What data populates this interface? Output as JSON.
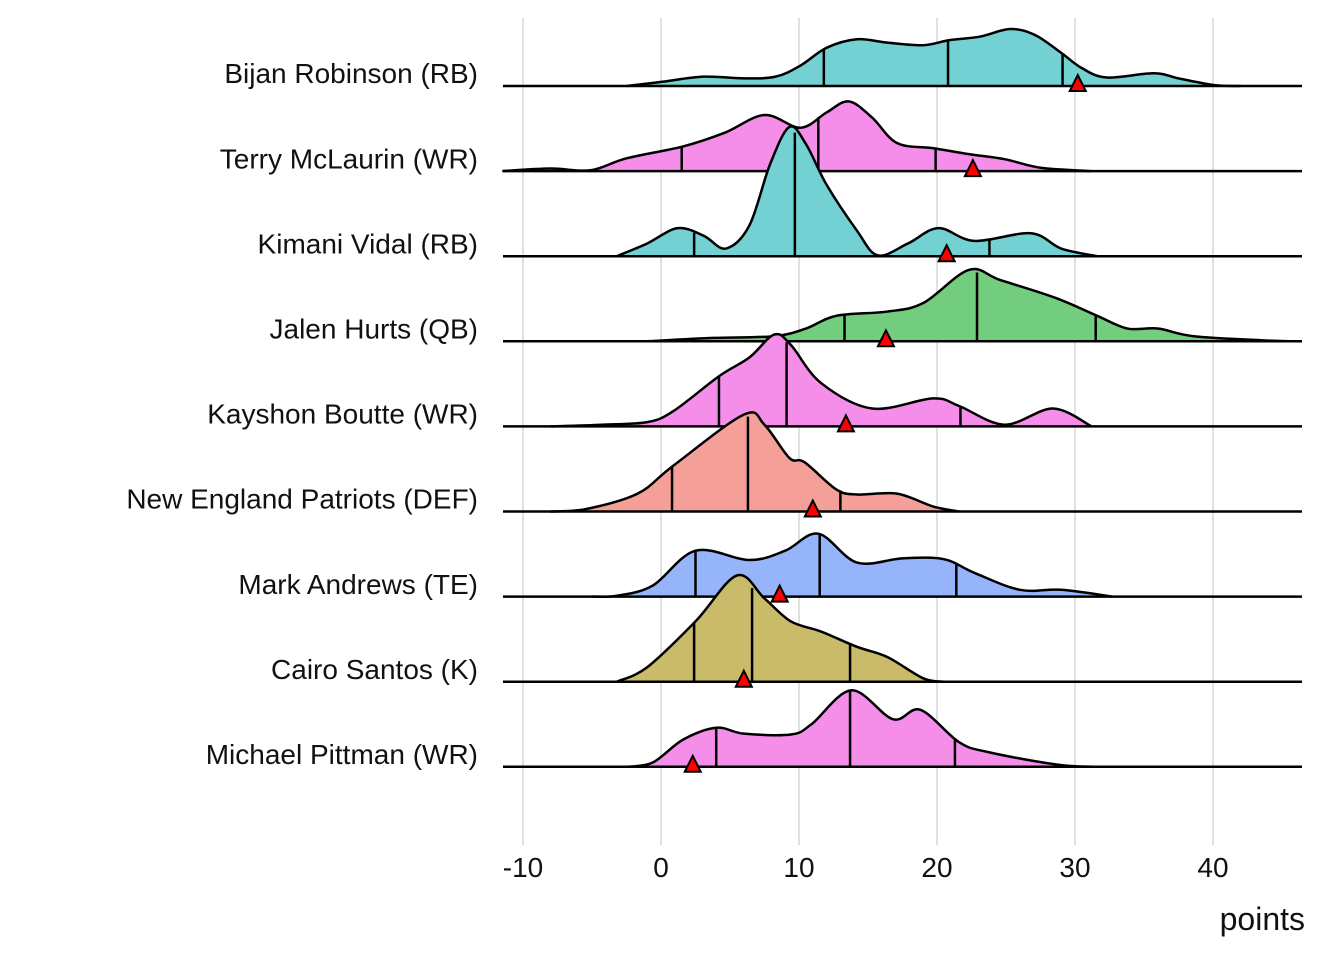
{
  "chart_data": {
    "type": "ridgeline",
    "title": "",
    "xlabel": "points",
    "ylabel": "",
    "xlim": [
      -11.5,
      46.3
    ],
    "xticks": [
      -10,
      0,
      10,
      20,
      30,
      40
    ],
    "grid": true,
    "density_units": "relative height, 1 = row spacing",
    "marker": "red triangle = actual points",
    "quantile_lines": "vertical lines at 25th/50th/75th percentile",
    "series": [
      {
        "name": "Bijan Robinson (RB)",
        "color": "#73d1d3",
        "quantiles": [
          11.8,
          20.8,
          29.1
        ],
        "marker": 30.2,
        "density": [
          [
            -2.5,
            0
          ],
          [
            0.1,
            0.05
          ],
          [
            3.1,
            0.11
          ],
          [
            6,
            0.09
          ],
          [
            8.3,
            0.11
          ],
          [
            10.1,
            0.24
          ],
          [
            12,
            0.45
          ],
          [
            14.2,
            0.55
          ],
          [
            16.4,
            0.51
          ],
          [
            19,
            0.48
          ],
          [
            20.9,
            0.54
          ],
          [
            23.1,
            0.58
          ],
          [
            25.3,
            0.67
          ],
          [
            27.1,
            0.6
          ],
          [
            29,
            0.39
          ],
          [
            30.5,
            0.21
          ],
          [
            32.3,
            0.1
          ],
          [
            35.7,
            0.15
          ],
          [
            37.5,
            0.09
          ],
          [
            40.1,
            0.01
          ],
          [
            42,
            0
          ]
        ]
      },
      {
        "name": "Terry McLaurin (WR)",
        "color": "#f48ee8",
        "quantiles": [
          1.5,
          11.4,
          19.9
        ],
        "marker": 22.6,
        "density": [
          [
            -11.5,
            0
          ],
          [
            -8,
            0.03
          ],
          [
            -5.1,
            0.01
          ],
          [
            -2.5,
            0.15
          ],
          [
            1.6,
            0.29
          ],
          [
            4.6,
            0.45
          ],
          [
            7.5,
            0.66
          ],
          [
            10.1,
            0.51
          ],
          [
            12,
            0.69
          ],
          [
            13.6,
            0.82
          ],
          [
            15.3,
            0.63
          ],
          [
            17.1,
            0.33
          ],
          [
            19.7,
            0.27
          ],
          [
            22.3,
            0.2
          ],
          [
            24.9,
            0.14
          ],
          [
            27.5,
            0.04
          ],
          [
            31.2,
            0
          ]
        ]
      },
      {
        "name": "Kimani Vidal (RB)",
        "color": "#73d1d3",
        "quantiles": [
          2.4,
          9.7,
          23.8
        ],
        "marker": 20.7,
        "density": [
          [
            -3.2,
            0
          ],
          [
            -1,
            0.15
          ],
          [
            1.2,
            0.33
          ],
          [
            3.1,
            0.24
          ],
          [
            4.7,
            0.09
          ],
          [
            6.4,
            0.36
          ],
          [
            7.9,
            1.08
          ],
          [
            9.3,
            1.52
          ],
          [
            10.5,
            1.32
          ],
          [
            12,
            0.84
          ],
          [
            14.2,
            0.3
          ],
          [
            15.7,
            0.01
          ],
          [
            17.9,
            0.15
          ],
          [
            20.1,
            0.33
          ],
          [
            22.7,
            0.18
          ],
          [
            26.8,
            0.27
          ],
          [
            29,
            0.09
          ],
          [
            31.6,
            0
          ]
        ]
      },
      {
        "name": "Jalen Hurts (QB)",
        "color": "#73cd7e",
        "quantiles": [
          13.3,
          22.9,
          31.5
        ],
        "marker": 16.3,
        "density": [
          [
            -1,
            0
          ],
          [
            0.1,
            0.01
          ],
          [
            3.8,
            0.04
          ],
          [
            8.2,
            0.06
          ],
          [
            10.5,
            0.15
          ],
          [
            12.7,
            0.3
          ],
          [
            16.4,
            0.35
          ],
          [
            19,
            0.45
          ],
          [
            22.3,
            0.84
          ],
          [
            24.6,
            0.72
          ],
          [
            28.6,
            0.51
          ],
          [
            31.6,
            0.3
          ],
          [
            33.8,
            0.15
          ],
          [
            36,
            0.15
          ],
          [
            38.6,
            0.06
          ],
          [
            43.8,
            0.01
          ],
          [
            46,
            0
          ]
        ]
      },
      {
        "name": "Kayshon Boutte (WR)",
        "color": "#f48ee8",
        "quantiles": [
          4.2,
          9.1,
          21.7
        ],
        "marker": 13.4,
        "density": [
          [
            -8,
            0
          ],
          [
            -4.3,
            0.02
          ],
          [
            -1,
            0.05
          ],
          [
            0.9,
            0.18
          ],
          [
            4.2,
            0.59
          ],
          [
            6.4,
            0.81
          ],
          [
            8.2,
            1.08
          ],
          [
            9.4,
            0.96
          ],
          [
            11.6,
            0.51
          ],
          [
            15.3,
            0.21
          ],
          [
            19.7,
            0.33
          ],
          [
            21.6,
            0.24
          ],
          [
            24.9,
            0.02
          ],
          [
            28.4,
            0.21
          ],
          [
            31.2,
            0
          ]
        ]
      },
      {
        "name": "New England Patriots (DEF)",
        "color": "#f4a099",
        "quantiles": [
          0.8,
          6.3,
          13.0
        ],
        "marker": 11.0,
        "density": [
          [
            -8,
            0
          ],
          [
            -5.4,
            0.03
          ],
          [
            -1.7,
            0.21
          ],
          [
            0.9,
            0.54
          ],
          [
            6,
            1.14
          ],
          [
            7.5,
            1.02
          ],
          [
            9.3,
            0.63
          ],
          [
            10.4,
            0.58
          ],
          [
            12.7,
            0.26
          ],
          [
            14.2,
            0.2
          ],
          [
            17.1,
            0.21
          ],
          [
            19.7,
            0.06
          ],
          [
            21.6,
            0
          ]
        ]
      },
      {
        "name": "Mark Andrews (TE)",
        "color": "#96b4fa",
        "quantiles": [
          2.5,
          11.5,
          21.4
        ],
        "marker": 8.6,
        "density": [
          [
            -5,
            0
          ],
          [
            -3.2,
            0.01
          ],
          [
            -0.6,
            0.13
          ],
          [
            2.5,
            0.54
          ],
          [
            6.4,
            0.43
          ],
          [
            9,
            0.54
          ],
          [
            11.4,
            0.74
          ],
          [
            14.2,
            0.4
          ],
          [
            17.5,
            0.45
          ],
          [
            20.5,
            0.44
          ],
          [
            22.7,
            0.28
          ],
          [
            26,
            0.08
          ],
          [
            29,
            0.08
          ],
          [
            32.7,
            0
          ]
        ]
      },
      {
        "name": "Cairo Santos (K)",
        "color": "#c9bb6a",
        "quantiles": [
          2.4,
          6.6,
          13.7
        ],
        "marker": 6.0,
        "density": [
          [
            -3.2,
            0
          ],
          [
            -1,
            0.17
          ],
          [
            2.5,
            0.71
          ],
          [
            5.5,
            1.25
          ],
          [
            7.5,
            0.98
          ],
          [
            9.4,
            0.71
          ],
          [
            11.6,
            0.59
          ],
          [
            14.2,
            0.41
          ],
          [
            16.4,
            0.29
          ],
          [
            19,
            0.04
          ],
          [
            20.5,
            0
          ]
        ]
      },
      {
        "name": "Michael Pittman (WR)",
        "color": "#f48ee8",
        "quantiles": [
          4.0,
          13.7,
          21.3
        ],
        "marker": 2.3,
        "density": [
          [
            -2.5,
            0
          ],
          [
            -0.6,
            0.05
          ],
          [
            1.6,
            0.32
          ],
          [
            4,
            0.46
          ],
          [
            6,
            0.39
          ],
          [
            9.4,
            0.38
          ],
          [
            10.9,
            0.5
          ],
          [
            13.8,
            0.9
          ],
          [
            16.8,
            0.56
          ],
          [
            18.8,
            0.67
          ],
          [
            21.6,
            0.29
          ],
          [
            23.8,
            0.17
          ],
          [
            29,
            0.02
          ],
          [
            32.7,
            0
          ]
        ]
      }
    ]
  }
}
